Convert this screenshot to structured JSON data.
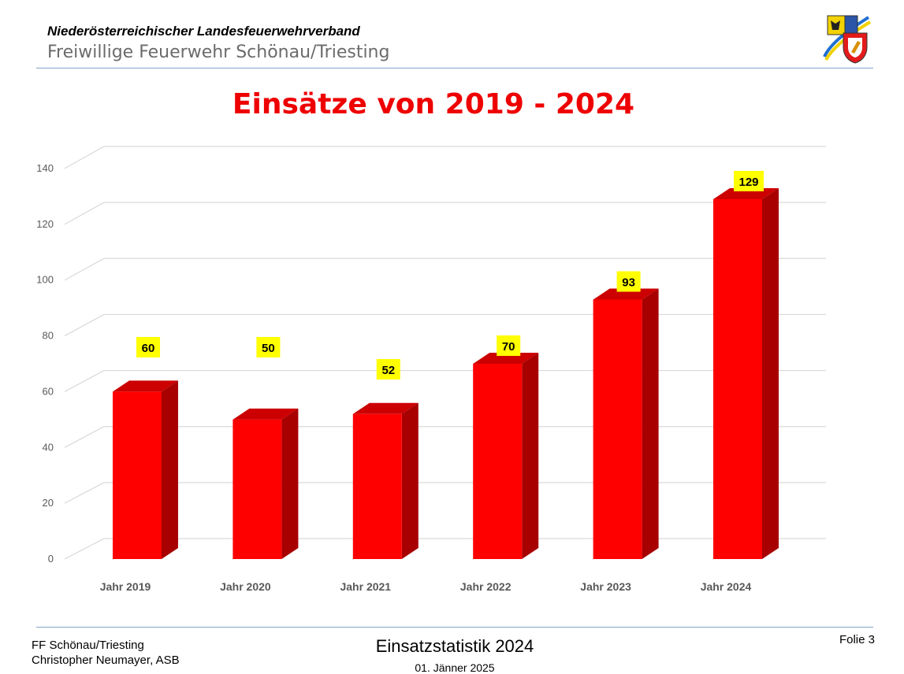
{
  "header": {
    "organization": "Niederösterreichischer Landesfeuerwehrverband",
    "department": "Freiwillige Feuerwehr Schönau/Triesting"
  },
  "slide": {
    "title": "Einsätze von 2019 - 2024"
  },
  "chart_data": {
    "type": "bar",
    "title": "",
    "categories": [
      "Jahr 2019",
      "Jahr 2020",
      "Jahr 2021",
      "Jahr 2022",
      "Jahr 2023",
      "Jahr 2024"
    ],
    "values": [
      60,
      50,
      52,
      70,
      93,
      129
    ],
    "data_labels": [
      "60",
      "50",
      "52",
      "70",
      "93",
      "129"
    ],
    "y_ticks": [
      "0",
      "20",
      "40",
      "60",
      "80",
      "100",
      "120",
      "140"
    ],
    "ylim": [
      0,
      140
    ],
    "xlabel": "",
    "ylabel": "",
    "grid": true,
    "style": "3d-column",
    "colors": {
      "bar_front": "#ff0000",
      "bar_top": "#cc0000",
      "bar_side": "#a80000",
      "label_bg": "#ffff00",
      "grid": "#d9d9d9",
      "axis_text": "#595959"
    }
  },
  "footer": {
    "org_line1": "FF Schönau/Triesting",
    "org_line2": "Christopher Neumayer, ASB",
    "presentation": "Einsatzstatistik 2024",
    "date": "01. Jänner 2025",
    "slide_number": "Folie 3"
  }
}
